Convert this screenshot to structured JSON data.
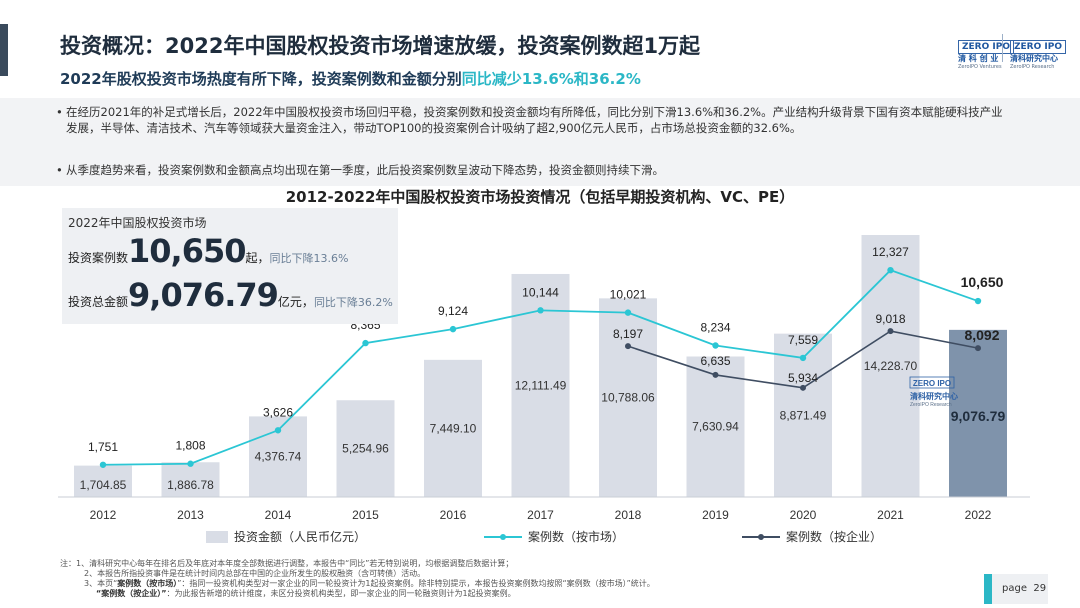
{
  "header": {
    "title": "投资概况：2022年中国股权投资市场增速放缓，投资案例数超1万起",
    "subtitle_main": "2022年股权投资市场热度有所下降，投资案例数和金额分别",
    "subtitle_highlight": "同比减少13.6%和36.2%"
  },
  "logos": {
    "left": {
      "mark": "ZERO IPO",
      "name": "清 科 创 业",
      "en": "ZeroIPO Ventures"
    },
    "right": {
      "mark": "ZERO IPO",
      "name": "清科研究中心",
      "en": "ZeroIPO Research"
    }
  },
  "bullets": [
    "在经历2021年的补足式增长后，2022年中国股权投资市场回归平稳，投资案例数和投资金额均有所降低，同比分别下滑13.6%和36.2%。产业结构升级背景下国有资本赋能硬科技产业发展，半导体、清洁技术、汽车等领域获大量资金注入，带动TOP100的投资案例合计吸纳了超2,900亿元人民币，占市场总投资金额的32.6%。",
    "从季度趋势来看，投资案例数和金额高点均出现在第一季度，此后投资案例数呈波动下降态势，投资金额则持续下滑。"
  ],
  "stat_box": {
    "heading": "2022年中国股权投资市场",
    "cases_label": "投资案例数",
    "cases_value": "10,650",
    "cases_unit": "起，",
    "cases_yoy": "同比下降13.6%",
    "amount_label": "投资总金额",
    "amount_value": "9,076.79",
    "amount_unit": "亿元，",
    "amount_yoy": "同比下降36.2%"
  },
  "watermark": {
    "mark": "ZERO IPO",
    "name": "清科研究中心",
    "en": "ZeroIPO Research"
  },
  "colors": {
    "bar": "#d9dde6",
    "bar_highlight": "#7f93ab",
    "line_market": "#2bc6d4",
    "line_enterprise": "#3f4d62",
    "accent": "#2bb7c6"
  },
  "chart_data": {
    "type": "bar",
    "title": "2012-2022年中国股权投资市场投资情况（包括早期投资机构、VC、PE）",
    "categories": [
      "2012",
      "2013",
      "2014",
      "2015",
      "2016",
      "2017",
      "2018",
      "2019",
      "2020",
      "2021",
      "2022"
    ],
    "series": [
      {
        "name": "投资金额（人民币亿元）",
        "type": "bar",
        "values": [
          1704.85,
          1886.78,
          4376.74,
          5254.96,
          7449.1,
          12111.49,
          10788.06,
          7630.94,
          8871.49,
          14228.7,
          9076.79
        ]
      },
      {
        "name": "案例数（按市场）",
        "type": "line",
        "values": [
          1751,
          1808,
          3626,
          8365,
          9124,
          10144,
          10021,
          8234,
          7559,
          12327,
          10650
        ]
      },
      {
        "name": "案例数（按企业）",
        "type": "line",
        "values": [
          null,
          null,
          null,
          null,
          null,
          null,
          8197,
          6635,
          5934,
          9018,
          8092
        ]
      }
    ],
    "bar_labels": [
      "1,704.85",
      "1,886.78",
      "4,376.74",
      "5,254.96",
      "7,449.10",
      "12,111.49",
      "10,788.06",
      "7,630.94",
      "8,871.49",
      "14,228.70",
      "9,076.79"
    ],
    "market_labels": [
      "1,751",
      "1,808",
      "3,626",
      "8,365",
      "9,124",
      "10,144",
      "10,021",
      "8,234",
      "7,559",
      "12,327",
      "10,650"
    ],
    "enterprise_labels": [
      "",
      "",
      "",
      "",
      "",
      "",
      "8,197",
      "6,635",
      "5,934",
      "9,018",
      "8,092"
    ],
    "legend_position": "bottom",
    "grid": false
  },
  "footnotes": {
    "line1": "注：1、清科研究中心每年在排名后及年底对本年度全部数据进行调整，本报告中“同比”若无特别说明，均根据调整后数据计算；",
    "line2": "2、本报告所指投资事件是在统计时间内总部在中国的企业所发生的股权融资（含可转债）活动。",
    "line3_prefix": "3、本页“",
    "line3_bold": "案例数（按市场）",
    "line3_rest": "”：指同一投资机构类型对一家企业的同一轮投资计为1起投资案例。除非特别提示，本报告投资案例数均按照“案例数（按市场）”统计。",
    "line4_bold": "“案例数（按企业）”",
    "line4_rest": "：为此报告新增的统计维度，未区分投资机构类型，即一家企业的同一轮融资则计为1起投资案例。"
  },
  "page": {
    "label": "page",
    "number": "29"
  }
}
